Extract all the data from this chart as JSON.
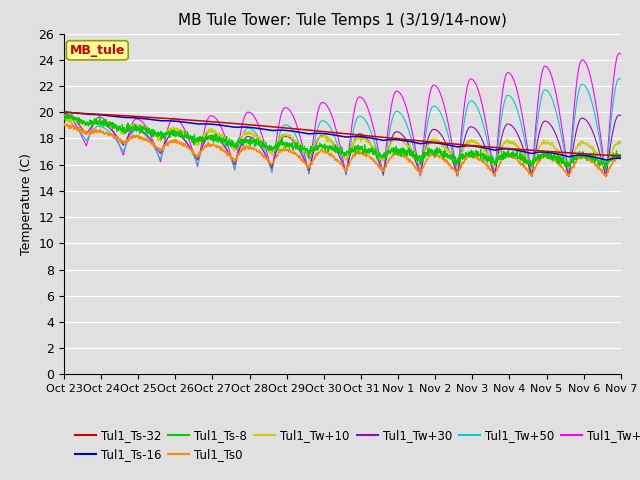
{
  "title": "MB Tule Tower: Tule Temps 1 (3/19/14-now)",
  "ylabel": "Temperature (C)",
  "annotation": "MB_tule",
  "ylim": [
    0,
    26
  ],
  "yticks": [
    0,
    2,
    4,
    6,
    8,
    10,
    12,
    14,
    16,
    18,
    20,
    22,
    24,
    26
  ],
  "xtick_labels": [
    "Oct 23",
    "Oct 24",
    "Oct 25",
    "Oct 26",
    "Oct 27",
    "Oct 28",
    "Oct 29",
    "Oct 30",
    "Oct 31",
    "Nov 1",
    "Nov 2",
    "Nov 3",
    "Nov 4",
    "Nov 5",
    "Nov 6",
    "Nov 7"
  ],
  "n_days": 16,
  "series_colors": {
    "Tul1_Ts-32": "#cc0000",
    "Tul1_Ts-16": "#0000cc",
    "Tul1_Ts-8": "#00cc00",
    "Tul1_Ts0": "#ff8800",
    "Tul1_Tw+10": "#cccc00",
    "Tul1_Tw+30": "#9900cc",
    "Tul1_Tw+50": "#00cccc",
    "Tul1_Tw+100": "#ff00ff"
  },
  "bg_color": "#e0e0e0",
  "plot_bg": "#e0e0e0",
  "grid_color": "#ffffff",
  "font_size": 9,
  "title_font_size": 11
}
